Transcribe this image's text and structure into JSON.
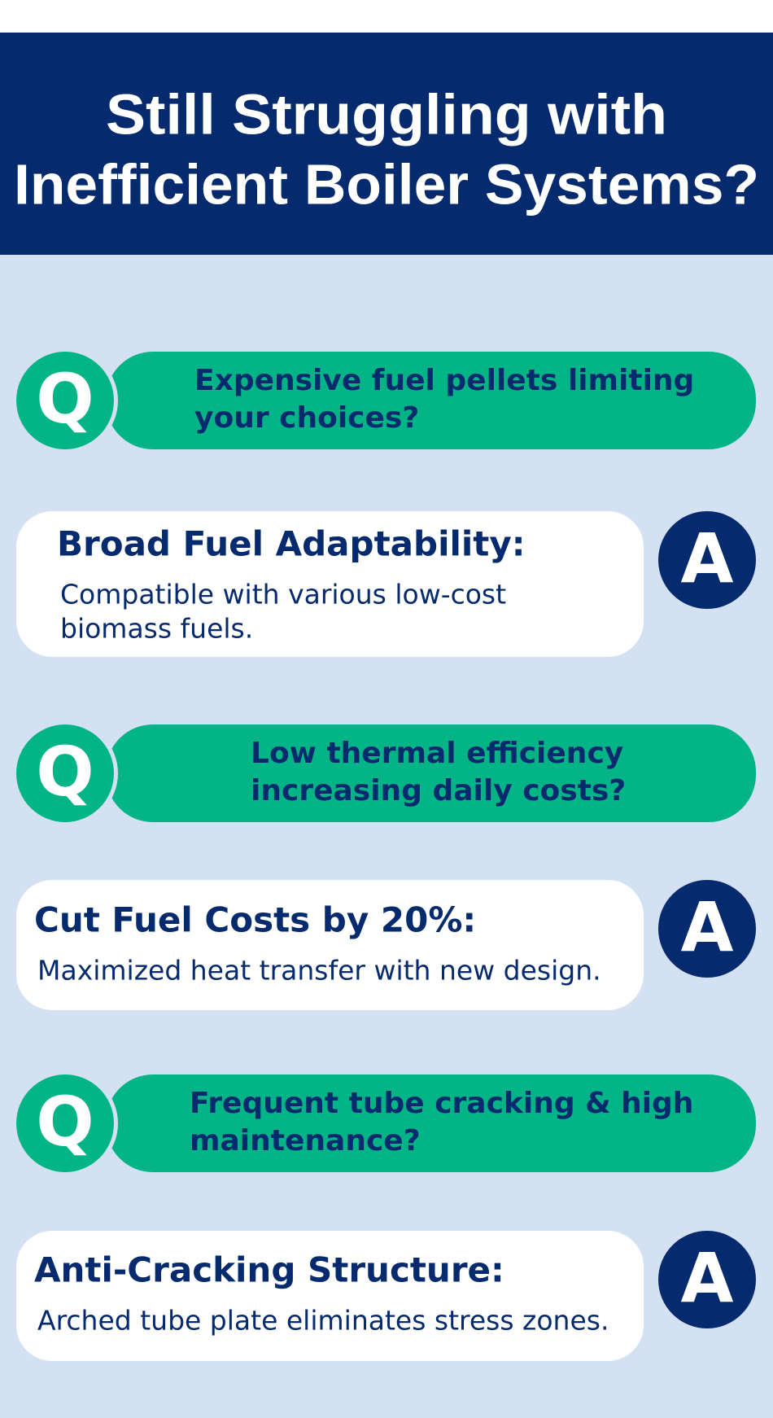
{
  "header": {
    "title": [
      "Still Struggling with",
      "Inefficient Boiler Systems?"
    ]
  },
  "badges": {
    "question": "Q",
    "answer": "A"
  },
  "items": [
    {
      "question": [
        "Expensive fuel pellets limiting",
        "your choices?"
      ],
      "answer_title": "Broad Fuel Adaptability:",
      "answer_text": [
        "Compatible with various low-cost",
        "biomass fuels."
      ]
    },
    {
      "question": [
        "Low thermal efficiency",
        "increasing daily costs?"
      ],
      "answer_title": "Cut Fuel Costs by 20%:",
      "answer_text": [
        "Maximized heat transfer with new design."
      ]
    },
    {
      "question": [
        "Frequent tube cracking & high",
        "maintenance?"
      ],
      "answer_title": "Anti-Cracking Structure:",
      "answer_text": [
        "Arched tube plate eliminates stress zones."
      ]
    }
  ]
}
